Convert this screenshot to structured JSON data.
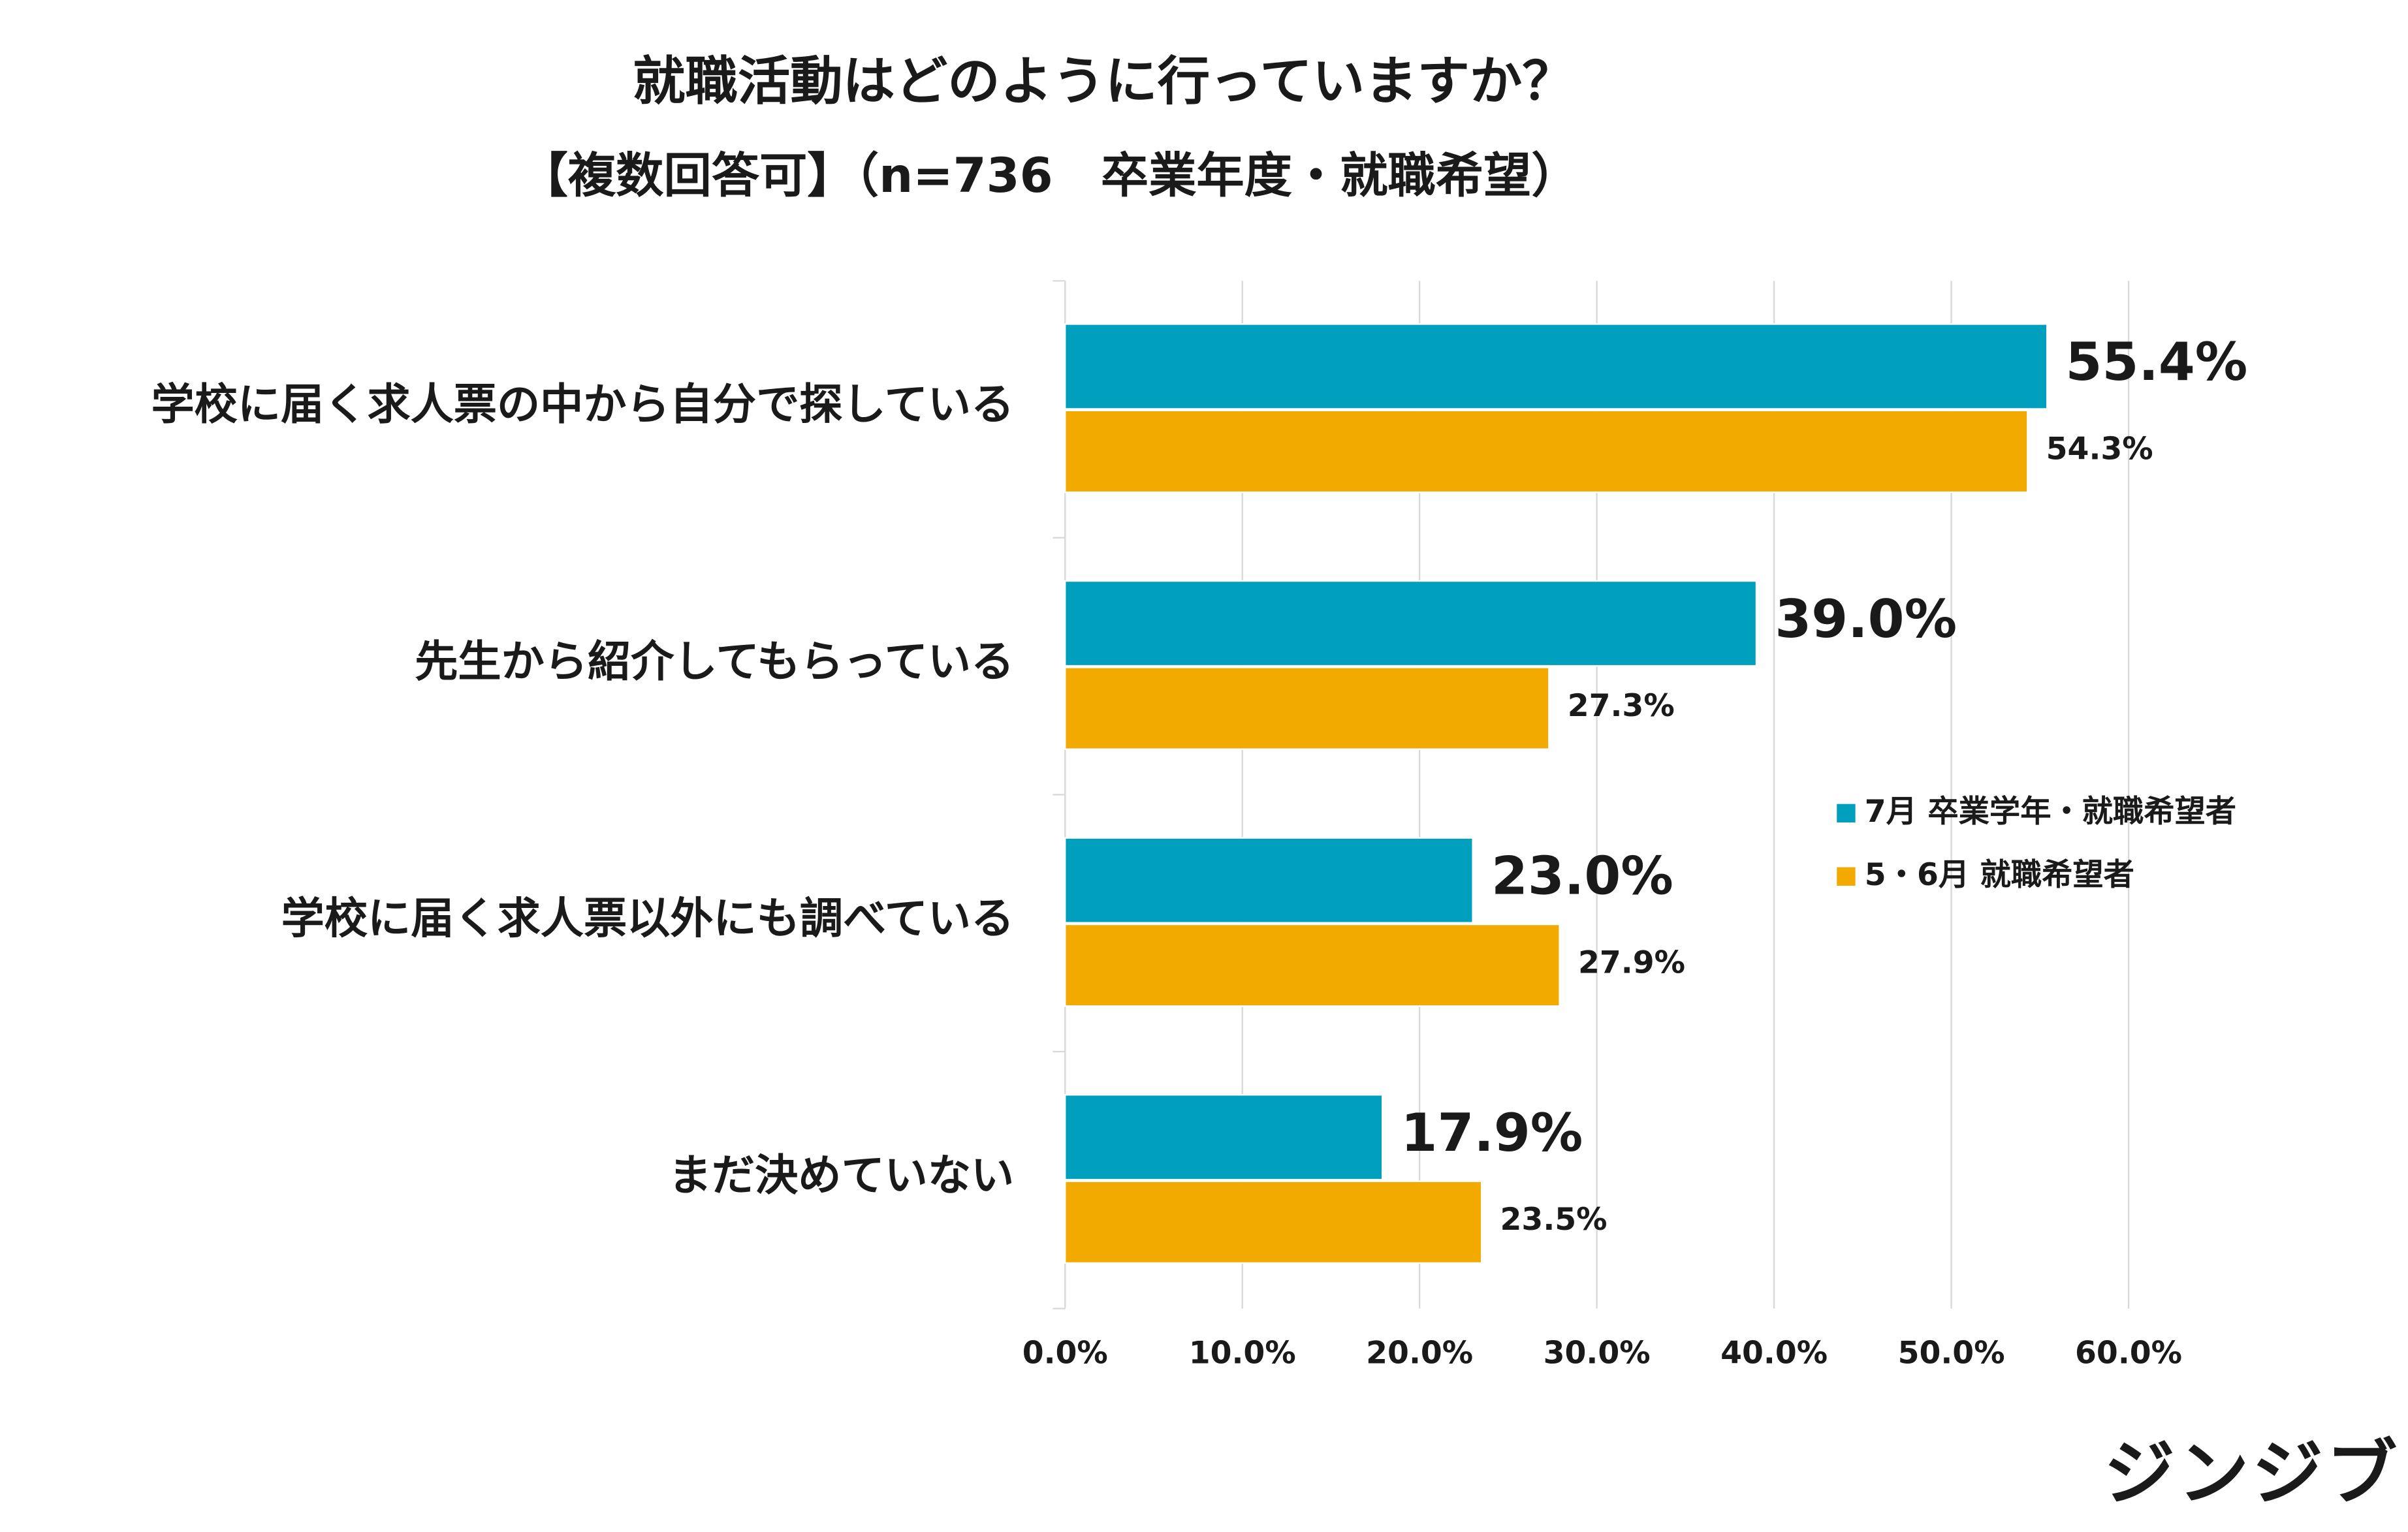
{
  "chart_data": {
    "type": "bar",
    "horizontal": true,
    "title": "就職活動はどのように行っていますか？",
    "subtitle": "【複数回答可】（n=736　卒業年度・就職希望）",
    "categories": [
      "学校に届く求人票の中から自分で探している",
      "先生から紹介してもらっている",
      "学校に届く求人票以外にも調べている",
      "まだ決めていない"
    ],
    "series": [
      {
        "name": "7月 卒業学年・就職希望者",
        "color": "#009fbd",
        "values": [
          55.4,
          39.0,
          23.0,
          17.9
        ],
        "value_labels": [
          "55.4%",
          "39.0%",
          "23.0%",
          "17.9%"
        ]
      },
      {
        "name": "5・6月 就職希望者",
        "color": "#f2a900",
        "values": [
          54.3,
          27.3,
          27.9,
          23.5
        ],
        "value_labels": [
          "54.3%",
          "27.3%",
          "27.9%",
          "23.5%"
        ]
      }
    ],
    "xlim": [
      0,
      60
    ],
    "xticks": [
      {
        "value": 0,
        "label": "0.0%"
      },
      {
        "value": 10,
        "label": "10.0%"
      },
      {
        "value": 20,
        "label": "20.0%"
      },
      {
        "value": 30,
        "label": "30.0%"
      },
      {
        "value": 40,
        "label": "40.0%"
      },
      {
        "value": 50,
        "label": "50.0%"
      },
      {
        "value": 60,
        "label": "60.0%"
      }
    ],
    "grid": true,
    "legend": "right"
  },
  "brand": "ジンジブ"
}
